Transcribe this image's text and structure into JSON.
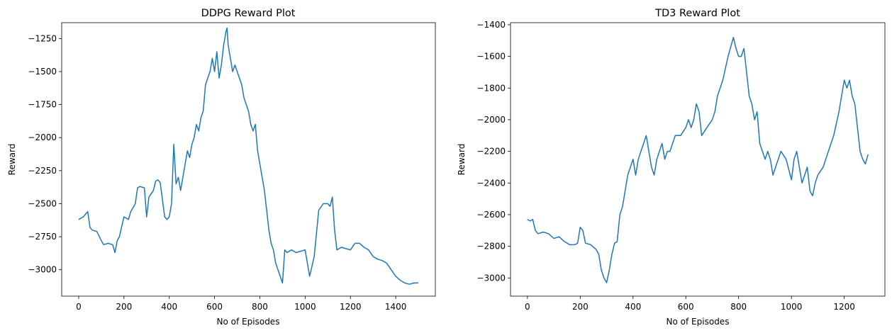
{
  "chart_data": [
    {
      "type": "line",
      "title": "DDPG Reward Plot",
      "xlabel": "No of Episodes",
      "ylabel": "Reward",
      "xlim": [
        -75,
        1575
      ],
      "ylim": [
        -3200,
        -1130
      ],
      "xticks": [
        0,
        200,
        400,
        600,
        800,
        1000,
        1200,
        1400
      ],
      "yticks": [
        -3000,
        -2750,
        -2500,
        -2250,
        -2000,
        -1750,
        -1500,
        -1250
      ],
      "xtick_labels": [
        "0",
        "200",
        "400",
        "600",
        "800",
        "1000",
        "1200",
        "1400"
      ],
      "ytick_labels": [
        "−3000",
        "−2750",
        "−2500",
        "−2250",
        "−2000",
        "−1750",
        "−1500",
        "−1250"
      ],
      "grid": false,
      "line_color": "#1f77b4",
      "series": [
        {
          "x": [
            0,
            20,
            40,
            50,
            60,
            80,
            100,
            110,
            130,
            150,
            160,
            170,
            180,
            200,
            220,
            230,
            250,
            260,
            270,
            290,
            300,
            310,
            330,
            340,
            350,
            360,
            380,
            390,
            400,
            410,
            420,
            430,
            440,
            450,
            460,
            470,
            480,
            490,
            500,
            510,
            520,
            530,
            540,
            550,
            560,
            570,
            580,
            590,
            600,
            610,
            620,
            630,
            640,
            650,
            655,
            660,
            670,
            680,
            690,
            700,
            710,
            720,
            730,
            740,
            750,
            760,
            770,
            780,
            790,
            800,
            810,
            820,
            830,
            840,
            850,
            860,
            870,
            880,
            890,
            900,
            910,
            920,
            940,
            960,
            980,
            1000,
            1010,
            1020,
            1040,
            1060,
            1080,
            1100,
            1110,
            1120,
            1130,
            1140,
            1160,
            1180,
            1200,
            1220,
            1240,
            1260,
            1280,
            1300,
            1320,
            1340,
            1360,
            1380,
            1400,
            1420,
            1440,
            1460,
            1480,
            1500
          ],
          "y": [
            -2620,
            -2600,
            -2560,
            -2680,
            -2700,
            -2710,
            -2780,
            -2810,
            -2800,
            -2810,
            -2870,
            -2780,
            -2750,
            -2600,
            -2620,
            -2560,
            -2500,
            -2380,
            -2370,
            -2380,
            -2600,
            -2450,
            -2400,
            -2330,
            -2320,
            -2340,
            -2600,
            -2620,
            -2600,
            -2500,
            -2050,
            -2350,
            -2300,
            -2400,
            -2300,
            -2200,
            -2100,
            -2150,
            -2050,
            -2000,
            -1900,
            -1950,
            -1850,
            -1800,
            -1600,
            -1550,
            -1500,
            -1400,
            -1500,
            -1350,
            -1550,
            -1450,
            -1300,
            -1200,
            -1170,
            -1300,
            -1400,
            -1500,
            -1450,
            -1500,
            -1550,
            -1600,
            -1700,
            -1750,
            -1800,
            -1900,
            -1950,
            -1900,
            -2100,
            -2200,
            -2300,
            -2400,
            -2550,
            -2700,
            -2800,
            -2850,
            -2950,
            -3000,
            -3050,
            -3100,
            -2850,
            -2870,
            -2850,
            -2870,
            -2860,
            -2850,
            -2950,
            -3050,
            -2900,
            -2550,
            -2500,
            -2500,
            -2520,
            -2450,
            -2700,
            -2850,
            -2830,
            -2840,
            -2850,
            -2800,
            -2800,
            -2830,
            -2850,
            -2900,
            -2920,
            -2930,
            -2950,
            -3000,
            -3050,
            -3080,
            -3100,
            -3110,
            -3100,
            -3100
          ]
        }
      ]
    },
    {
      "type": "line",
      "title": "TD3 Reward Plot",
      "xlabel": "No of Episodes",
      "ylabel": "Reward",
      "xlim": [
        -64,
        1354
      ],
      "ylim": [
        -3115,
        -1387
      ],
      "xticks": [
        0,
        200,
        400,
        600,
        800,
        1000,
        1200
      ],
      "yticks": [
        -3000,
        -2800,
        -2600,
        -2400,
        -2200,
        -2000,
        -1800,
        -1600,
        -1400
      ],
      "xtick_labels": [
        "0",
        "200",
        "400",
        "600",
        "800",
        "1000",
        "1200"
      ],
      "ytick_labels": [
        "−3000",
        "−2800",
        "−2600",
        "−2400",
        "−2200",
        "−2000",
        "−1800",
        "−1600",
        "−1400"
      ],
      "grid": false,
      "line_color": "#1f77b4",
      "series": [
        {
          "x": [
            0,
            10,
            20,
            30,
            40,
            60,
            80,
            100,
            120,
            140,
            160,
            180,
            190,
            200,
            210,
            220,
            240,
            260,
            270,
            280,
            290,
            300,
            310,
            320,
            330,
            340,
            350,
            360,
            370,
            380,
            390,
            400,
            410,
            420,
            430,
            440,
            450,
            460,
            470,
            480,
            490,
            500,
            510,
            520,
            530,
            540,
            550,
            560,
            580,
            600,
            610,
            620,
            630,
            640,
            650,
            660,
            680,
            700,
            710,
            720,
            740,
            760,
            780,
            790,
            800,
            810,
            820,
            830,
            840,
            850,
            860,
            870,
            880,
            900,
            910,
            920,
            930,
            940,
            950,
            960,
            980,
            1000,
            1010,
            1020,
            1040,
            1060,
            1070,
            1080,
            1090,
            1100,
            1120,
            1140,
            1160,
            1180,
            1190,
            1200,
            1210,
            1220,
            1230,
            1240,
            1250,
            1260,
            1270,
            1280,
            1290
          ],
          "y": [
            -2630,
            -2640,
            -2630,
            -2700,
            -2720,
            -2710,
            -2720,
            -2750,
            -2740,
            -2770,
            -2790,
            -2790,
            -2780,
            -2680,
            -2700,
            -2780,
            -2790,
            -2820,
            -2850,
            -2950,
            -3000,
            -3030,
            -2950,
            -2850,
            -2780,
            -2770,
            -2600,
            -2550,
            -2450,
            -2350,
            -2300,
            -2250,
            -2350,
            -2250,
            -2200,
            -2150,
            -2100,
            -2200,
            -2300,
            -2350,
            -2250,
            -2200,
            -2150,
            -2250,
            -2200,
            -2200,
            -2150,
            -2100,
            -2100,
            -2050,
            -2000,
            -2050,
            -2000,
            -1900,
            -1950,
            -2100,
            -2050,
            -2000,
            -1950,
            -1850,
            -1750,
            -1600,
            -1480,
            -1550,
            -1600,
            -1600,
            -1550,
            -1700,
            -1850,
            -1900,
            -2000,
            -1950,
            -2150,
            -2250,
            -2200,
            -2250,
            -2350,
            -2300,
            -2250,
            -2200,
            -2250,
            -2380,
            -2250,
            -2200,
            -2400,
            -2300,
            -2450,
            -2480,
            -2400,
            -2350,
            -2300,
            -2200,
            -2100,
            -1950,
            -1850,
            -1750,
            -1800,
            -1750,
            -1850,
            -1900,
            -2050,
            -2200,
            -2250,
            -2280,
            -2220
          ]
        }
      ]
    }
  ]
}
